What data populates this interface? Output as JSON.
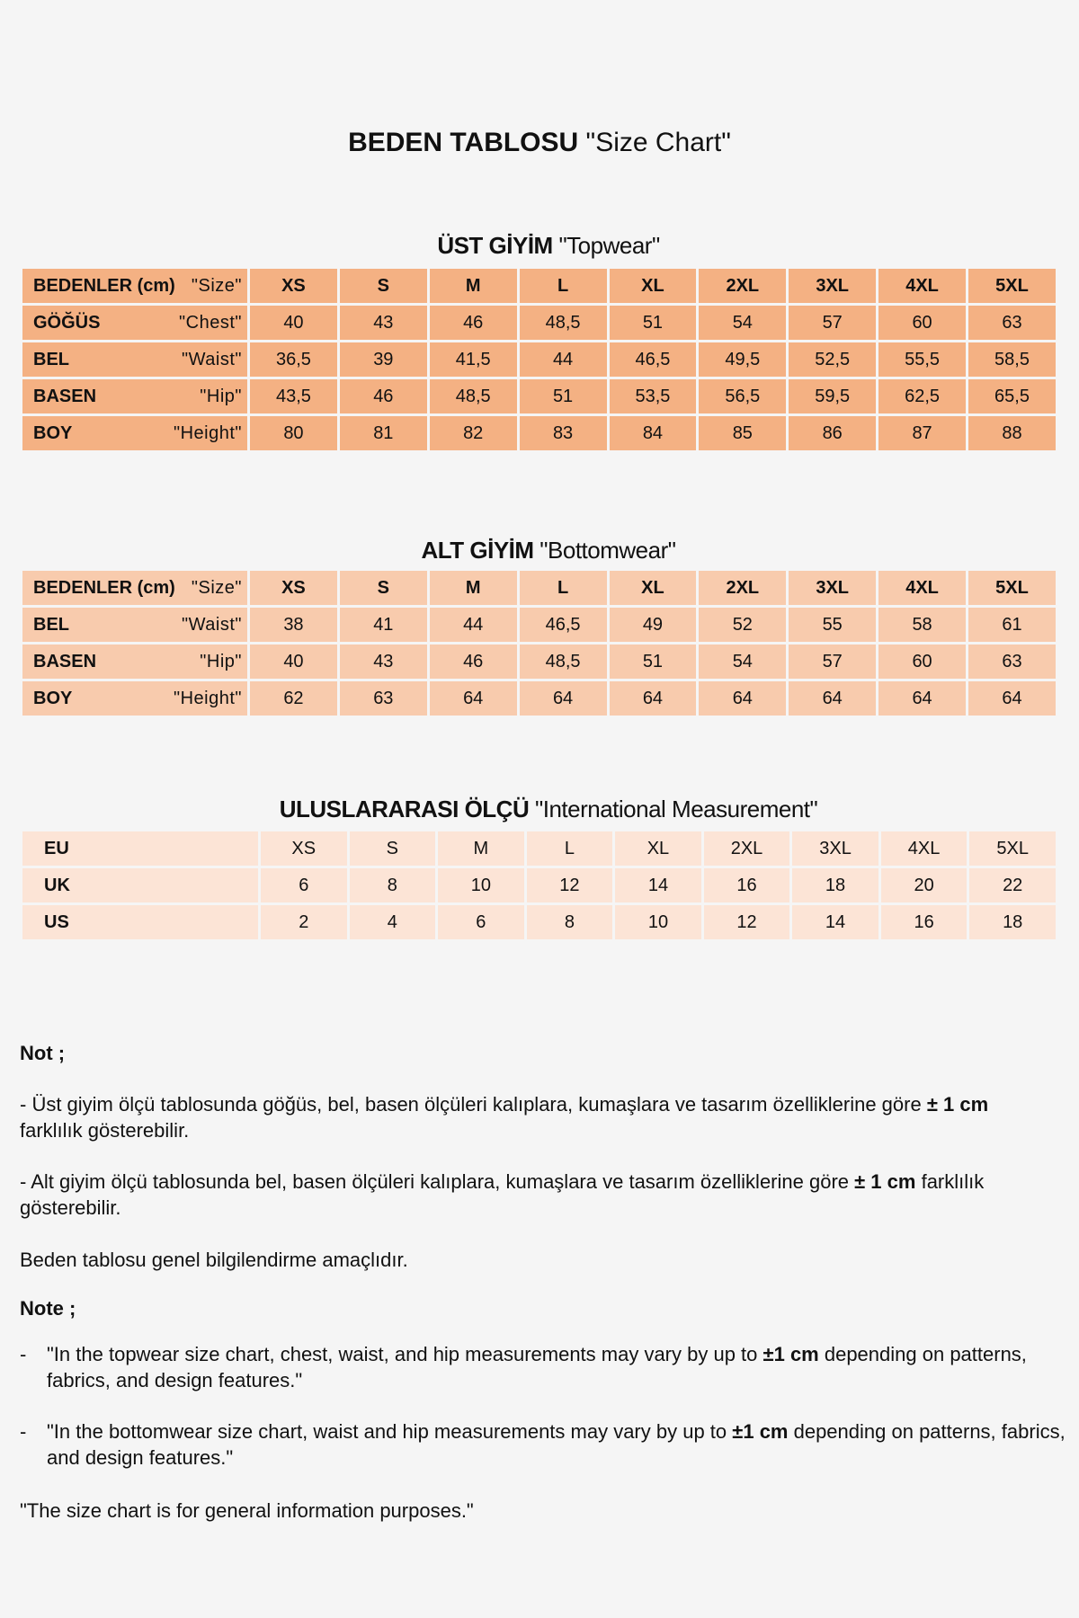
{
  "title": {
    "bold": "BEDEN TABLOSU",
    "normal": "\"Size Chart\""
  },
  "sizes": [
    "XS",
    "S",
    "M",
    "L",
    "XL",
    "2XL",
    "3XL",
    "4XL",
    "5XL"
  ],
  "topwear": {
    "heading_bold": "ÜST GİYİM",
    "heading_normal": "\"Topwear\"",
    "header": {
      "tr": "BEDENLER (cm)",
      "en": "\"Size\""
    },
    "rows": [
      {
        "tr": "GÖĞÜS",
        "en": "\"Chest\"",
        "values": [
          "40",
          "43",
          "46",
          "48,5",
          "51",
          "54",
          "57",
          "60",
          "63"
        ]
      },
      {
        "tr": "BEL",
        "en": "\"Waist\"",
        "values": [
          "36,5",
          "39",
          "41,5",
          "44",
          "46,5",
          "49,5",
          "52,5",
          "55,5",
          "58,5"
        ]
      },
      {
        "tr": "BASEN",
        "en": "\"Hip\"",
        "values": [
          "43,5",
          "46",
          "48,5",
          "51",
          "53,5",
          "56,5",
          "59,5",
          "62,5",
          "65,5"
        ]
      },
      {
        "tr": "BOY",
        "en": "\"Height\"",
        "values": [
          "80",
          "81",
          "82",
          "83",
          "84",
          "85",
          "86",
          "87",
          "88"
        ]
      }
    ]
  },
  "bottomwear": {
    "heading_bold": "ALT GİYİM",
    "heading_normal": "\"Bottomwear\"",
    "header": {
      "tr": "BEDENLER (cm)",
      "en": "\"Size\""
    },
    "rows": [
      {
        "tr": "BEL",
        "en": "\"Waist\"",
        "values": [
          "38",
          "41",
          "44",
          "46,5",
          "49",
          "52",
          "55",
          "58",
          "61"
        ]
      },
      {
        "tr": "BASEN",
        "en": "\"Hip\"",
        "values": [
          "40",
          "43",
          "46",
          "48,5",
          "51",
          "54",
          "57",
          "60",
          "63"
        ]
      },
      {
        "tr": "BOY",
        "en": "\"Height\"",
        "values": [
          "62",
          "63",
          "64",
          "64",
          "64",
          "64",
          "64",
          "64",
          "64"
        ]
      }
    ]
  },
  "international": {
    "heading_bold": "ULUSLARARASI  ÖLÇÜ",
    "heading_normal": "\"International Measurement\"",
    "rows": [
      {
        "label": "EU",
        "values": [
          "XS",
          "S",
          "M",
          "L",
          "XL",
          "2XL",
          "3XL",
          "4XL",
          "5XL"
        ]
      },
      {
        "label": "UK",
        "values": [
          "6",
          "8",
          "10",
          "12",
          "14",
          "16",
          "18",
          "20",
          "22"
        ]
      },
      {
        "label": "US",
        "values": [
          "2",
          "4",
          "6",
          "8",
          "10",
          "12",
          "14",
          "16",
          "18"
        ]
      }
    ]
  },
  "colors": {
    "topwear": "#f4b183",
    "bottomwear": "#f8cbad",
    "international": "#fce4d6",
    "background": "#f5f5f5"
  },
  "notes": {
    "tr_heading": "Not ;",
    "tr1_a": "- Üst giyim ölçü tablosunda göğüs, bel, basen ölçüleri kalıplara, kumaşlara ve tasarım özelliklerine göre ",
    "tr1_b": "± 1 cm",
    "tr1_c": " farklılık gösterebilir.",
    "tr2_a": "- Alt giyim ölçü tablosunda bel, basen ölçüleri kalıplara, kumaşlara ve tasarım özelliklerine göre ",
    "tr2_b": "± 1 cm",
    "tr2_c": " farklılık gösterebilir.",
    "tr3": "Beden tablosu genel bilgilendirme amaçlıdır.",
    "en_heading": "Note ;",
    "dash": "-",
    "en1_a": "\"In the topwear size chart, chest, waist, and hip measurements may vary by up to ",
    "en1_b": "±1 cm",
    "en1_c": " depending on patterns, fabrics, and design features.\"",
    "en2_a": "\"In the bottomwear size chart, waist and hip measurements may vary by up to ",
    "en2_b": "±1 cm",
    "en2_c": " depending on patterns, fabrics, and design features.\"",
    "en3": "\"The size chart is for general information purposes.\""
  }
}
